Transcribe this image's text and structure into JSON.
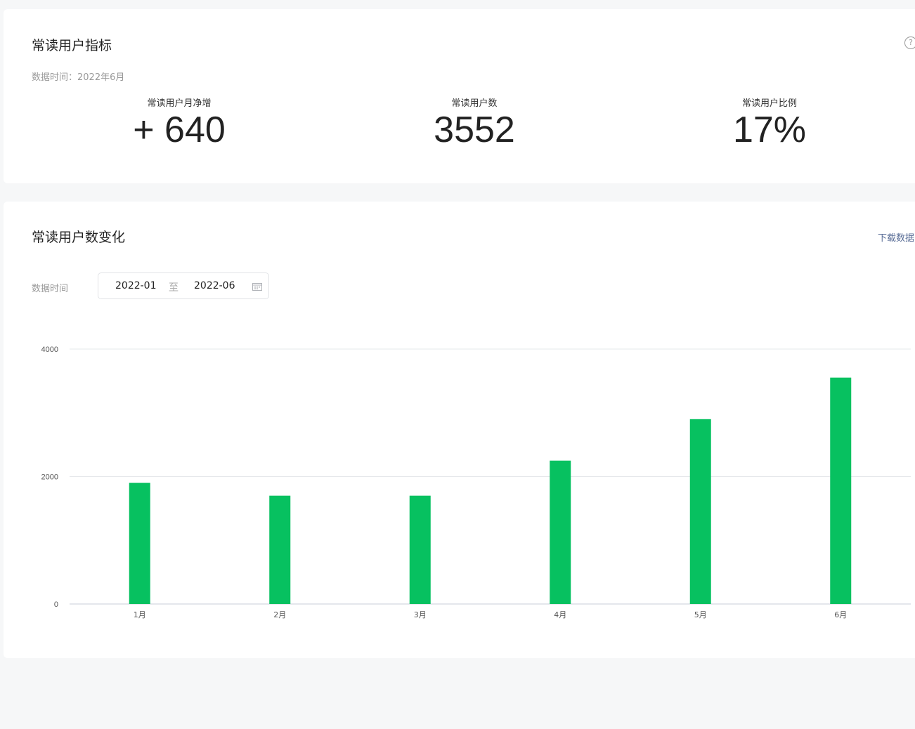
{
  "metrics_card": {
    "title": "常读用户指标",
    "help_icon": "question-circle-icon",
    "data_time": "数据时间：2022年6月",
    "metrics": [
      {
        "label": "常读用户月净增",
        "value": "+ 640"
      },
      {
        "label": "常读用户数",
        "value": "3552"
      },
      {
        "label": "常读用户比例",
        "value": "17%"
      }
    ]
  },
  "trend_card": {
    "title": "常读用户数变化",
    "download_label": "下载数据",
    "range_label": "数据时间",
    "range_start": "2022-01",
    "range_separator": "至",
    "range_end": "2022-06",
    "calendar_icon": "calendar-icon"
  },
  "colors": {
    "bar": "#07c160",
    "link": "#576b95",
    "grid": "#e6e8eb"
  },
  "chart_data": {
    "type": "bar",
    "categories": [
      "1月",
      "2月",
      "3月",
      "4月",
      "5月",
      "6月"
    ],
    "values": [
      1900,
      1700,
      1700,
      2250,
      2900,
      3552
    ],
    "ylim": [
      0,
      4000
    ],
    "yticks": [
      0,
      2000,
      4000
    ],
    "grid": true,
    "legend": "none"
  }
}
